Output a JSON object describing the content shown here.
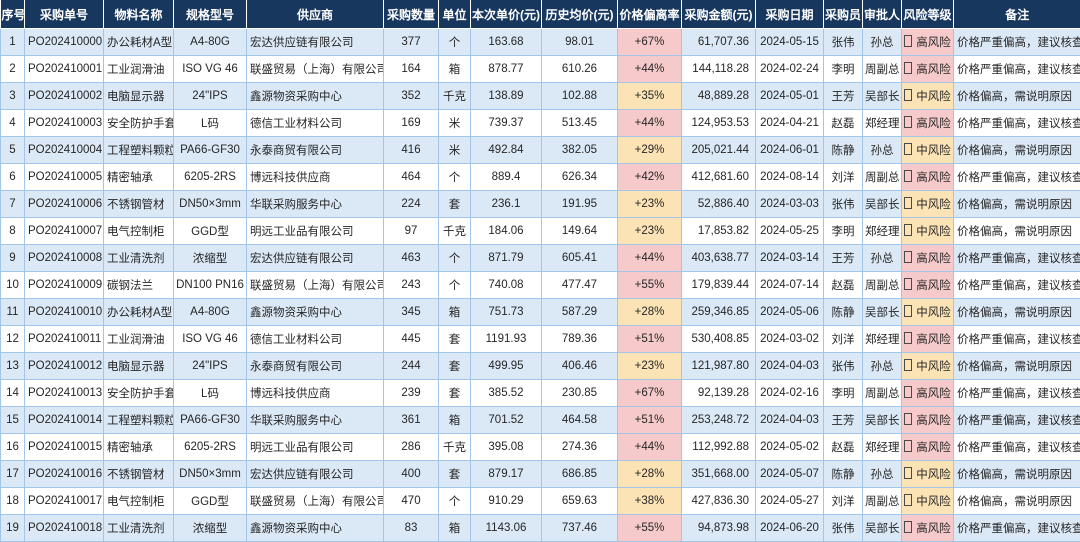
{
  "colors": {
    "header_bg": "#17375e",
    "row_stripe_blue": "#dbe8f6",
    "high_risk_pink": "#f6caca",
    "mid_risk_orange": "#fce3b5",
    "grid_border": "#a3c6e8"
  },
  "table": {
    "columns": [
      {
        "key": "index",
        "label": "序号"
      },
      {
        "key": "po",
        "label": "采购单号"
      },
      {
        "key": "material",
        "label": "物料名称"
      },
      {
        "key": "spec",
        "label": "规格型号"
      },
      {
        "key": "supplier",
        "label": "供应商"
      },
      {
        "key": "qty",
        "label": "采购数量"
      },
      {
        "key": "unit",
        "label": "单位"
      },
      {
        "key": "price",
        "label": "本次单价(元)"
      },
      {
        "key": "avg",
        "label": "历史均价(元)"
      },
      {
        "key": "dev",
        "label": "价格偏离率"
      },
      {
        "key": "amount",
        "label": "采购金额(元)"
      },
      {
        "key": "date",
        "label": "采购日期"
      },
      {
        "key": "buyer",
        "label": "采购员"
      },
      {
        "key": "approver",
        "label": "审批人"
      },
      {
        "key": "risk",
        "label": "风险等级"
      },
      {
        "key": "note",
        "label": "备注"
      }
    ],
    "risk_icon": "tofu-box",
    "rows": [
      {
        "index": "1",
        "po": "PO202410000",
        "material": "办公耗材A型",
        "spec": "A4-80G",
        "supplier": "宏达供应链有限公司",
        "qty": "377",
        "unit": "个",
        "price": "163.68",
        "avg": "98.01",
        "dev": "+67%",
        "dev_level": "high",
        "amount": "61,707.36",
        "date": "2024-05-15",
        "buyer": "张伟",
        "approver": "孙总",
        "risk": "高风险",
        "risk_level": "high",
        "note": "价格严重偏高，建议核查"
      },
      {
        "index": "2",
        "po": "PO202410001",
        "material": "工业润滑油",
        "spec": "ISO VG 46",
        "supplier": "联盛贸易（上海）有限公司",
        "qty": "164",
        "unit": "箱",
        "price": "878.77",
        "avg": "610.26",
        "dev": "+44%",
        "dev_level": "high",
        "amount": "144,118.28",
        "date": "2024-02-24",
        "buyer": "李明",
        "approver": "周副总",
        "risk": "高风险",
        "risk_level": "high",
        "note": "价格严重偏高，建议核查"
      },
      {
        "index": "3",
        "po": "PO202410002",
        "material": "电脑显示器",
        "spec": "24\"IPS",
        "supplier": "鑫源物资采购中心",
        "qty": "352",
        "unit": "千克",
        "price": "138.89",
        "avg": "102.88",
        "dev": "+35%",
        "dev_level": "mid",
        "amount": "48,889.28",
        "date": "2024-05-01",
        "buyer": "王芳",
        "approver": "吴部长",
        "risk": "中风险",
        "risk_level": "mid",
        "note": "价格偏高，需说明原因"
      },
      {
        "index": "4",
        "po": "PO202410003",
        "material": "安全防护手套",
        "spec": "L码",
        "supplier": "德信工业材料公司",
        "qty": "169",
        "unit": "米",
        "price": "739.37",
        "avg": "513.45",
        "dev": "+44%",
        "dev_level": "high",
        "amount": "124,953.53",
        "date": "2024-04-21",
        "buyer": "赵磊",
        "approver": "郑经理",
        "risk": "高风险",
        "risk_level": "high",
        "note": "价格严重偏高，建议核查"
      },
      {
        "index": "5",
        "po": "PO202410004",
        "material": "工程塑料颗粒",
        "spec": "PA66-GF30",
        "supplier": "永泰商贸有限公司",
        "qty": "416",
        "unit": "米",
        "price": "492.84",
        "avg": "382.05",
        "dev": "+29%",
        "dev_level": "mid",
        "amount": "205,021.44",
        "date": "2024-06-01",
        "buyer": "陈静",
        "approver": "孙总",
        "risk": "中风险",
        "risk_level": "mid",
        "note": "价格偏高，需说明原因"
      },
      {
        "index": "6",
        "po": "PO202410005",
        "material": "精密轴承",
        "spec": "6205-2RS",
        "supplier": "博远科技供应商",
        "qty": "464",
        "unit": "个",
        "price": "889.4",
        "avg": "626.34",
        "dev": "+42%",
        "dev_level": "high",
        "amount": "412,681.60",
        "date": "2024-08-14",
        "buyer": "刘洋",
        "approver": "周副总",
        "risk": "高风险",
        "risk_level": "high",
        "note": "价格严重偏高，建议核查"
      },
      {
        "index": "7",
        "po": "PO202410006",
        "material": "不锈钢管材",
        "spec": "DN50×3mm",
        "supplier": "华联采购服务中心",
        "qty": "224",
        "unit": "套",
        "price": "236.1",
        "avg": "191.95",
        "dev": "+23%",
        "dev_level": "mid",
        "amount": "52,886.40",
        "date": "2024-03-03",
        "buyer": "张伟",
        "approver": "吴部长",
        "risk": "中风险",
        "risk_level": "mid",
        "note": "价格偏高，需说明原因"
      },
      {
        "index": "8",
        "po": "PO202410007",
        "material": "电气控制柜",
        "spec": "GGD型",
        "supplier": "明远工业品有限公司",
        "qty": "97",
        "unit": "千克",
        "price": "184.06",
        "avg": "149.64",
        "dev": "+23%",
        "dev_level": "mid",
        "amount": "17,853.82",
        "date": "2024-05-25",
        "buyer": "李明",
        "approver": "郑经理",
        "risk": "中风险",
        "risk_level": "mid",
        "note": "价格偏高，需说明原因"
      },
      {
        "index": "9",
        "po": "PO202410008",
        "material": "工业清洗剂",
        "spec": "浓缩型",
        "supplier": "宏达供应链有限公司",
        "qty": "463",
        "unit": "个",
        "price": "871.79",
        "avg": "605.41",
        "dev": "+44%",
        "dev_level": "high",
        "amount": "403,638.77",
        "date": "2024-03-14",
        "buyer": "王芳",
        "approver": "孙总",
        "risk": "高风险",
        "risk_level": "high",
        "note": "价格严重偏高，建议核查"
      },
      {
        "index": "10",
        "po": "PO202410009",
        "material": "碳钢法兰",
        "spec": "DN100 PN16",
        "supplier": "联盛贸易（上海）有限公司",
        "qty": "243",
        "unit": "个",
        "price": "740.08",
        "avg": "477.47",
        "dev": "+55%",
        "dev_level": "high",
        "amount": "179,839.44",
        "date": "2024-07-14",
        "buyer": "赵磊",
        "approver": "周副总",
        "risk": "高风险",
        "risk_level": "high",
        "note": "价格严重偏高，建议核查"
      },
      {
        "index": "11",
        "po": "PO202410010",
        "material": "办公耗材A型",
        "spec": "A4-80G",
        "supplier": "鑫源物资采购中心",
        "qty": "345",
        "unit": "箱",
        "price": "751.73",
        "avg": "587.29",
        "dev": "+28%",
        "dev_level": "mid",
        "amount": "259,346.85",
        "date": "2024-05-06",
        "buyer": "陈静",
        "approver": "吴部长",
        "risk": "中风险",
        "risk_level": "mid",
        "note": "价格偏高，需说明原因"
      },
      {
        "index": "12",
        "po": "PO202410011",
        "material": "工业润滑油",
        "spec": "ISO VG 46",
        "supplier": "德信工业材料公司",
        "qty": "445",
        "unit": "套",
        "price": "1191.93",
        "avg": "789.36",
        "dev": "+51%",
        "dev_level": "high",
        "amount": "530,408.85",
        "date": "2024-03-02",
        "buyer": "刘洋",
        "approver": "郑经理",
        "risk": "高风险",
        "risk_level": "high",
        "note": "价格严重偏高，建议核查"
      },
      {
        "index": "13",
        "po": "PO202410012",
        "material": "电脑显示器",
        "spec": "24\"IPS",
        "supplier": "永泰商贸有限公司",
        "qty": "244",
        "unit": "套",
        "price": "499.95",
        "avg": "406.46",
        "dev": "+23%",
        "dev_level": "mid",
        "amount": "121,987.80",
        "date": "2024-04-03",
        "buyer": "张伟",
        "approver": "孙总",
        "risk": "中风险",
        "risk_level": "mid",
        "note": "价格偏高，需说明原因"
      },
      {
        "index": "14",
        "po": "PO202410013",
        "material": "安全防护手套",
        "spec": "L码",
        "supplier": "博远科技供应商",
        "qty": "239",
        "unit": "套",
        "price": "385.52",
        "avg": "230.85",
        "dev": "+67%",
        "dev_level": "high",
        "amount": "92,139.28",
        "date": "2024-02-16",
        "buyer": "李明",
        "approver": "周副总",
        "risk": "高风险",
        "risk_level": "high",
        "note": "价格严重偏高，建议核查"
      },
      {
        "index": "15",
        "po": "PO202410014",
        "material": "工程塑料颗粒",
        "spec": "PA66-GF30",
        "supplier": "华联采购服务中心",
        "qty": "361",
        "unit": "箱",
        "price": "701.52",
        "avg": "464.58",
        "dev": "+51%",
        "dev_level": "high",
        "amount": "253,248.72",
        "date": "2024-04-03",
        "buyer": "王芳",
        "approver": "吴部长",
        "risk": "高风险",
        "risk_level": "high",
        "note": "价格严重偏高，建议核查"
      },
      {
        "index": "16",
        "po": "PO202410015",
        "material": "精密轴承",
        "spec": "6205-2RS",
        "supplier": "明远工业品有限公司",
        "qty": "286",
        "unit": "千克",
        "price": "395.08",
        "avg": "274.36",
        "dev": "+44%",
        "dev_level": "high",
        "amount": "112,992.88",
        "date": "2024-05-02",
        "buyer": "赵磊",
        "approver": "郑经理",
        "risk": "高风险",
        "risk_level": "high",
        "note": "价格严重偏高，建议核查"
      },
      {
        "index": "17",
        "po": "PO202410016",
        "material": "不锈钢管材",
        "spec": "DN50×3mm",
        "supplier": "宏达供应链有限公司",
        "qty": "400",
        "unit": "套",
        "price": "879.17",
        "avg": "686.85",
        "dev": "+28%",
        "dev_level": "mid",
        "amount": "351,668.00",
        "date": "2024-05-07",
        "buyer": "陈静",
        "approver": "孙总",
        "risk": "中风险",
        "risk_level": "mid",
        "note": "价格偏高，需说明原因"
      },
      {
        "index": "18",
        "po": "PO202410017",
        "material": "电气控制柜",
        "spec": "GGD型",
        "supplier": "联盛贸易（上海）有限公司",
        "qty": "470",
        "unit": "个",
        "price": "910.29",
        "avg": "659.63",
        "dev": "+38%",
        "dev_level": "mid",
        "amount": "427,836.30",
        "date": "2024-05-27",
        "buyer": "刘洋",
        "approver": "周副总",
        "risk": "中风险",
        "risk_level": "mid",
        "note": "价格偏高，需说明原因"
      },
      {
        "index": "19",
        "po": "PO202410018",
        "material": "工业清洗剂",
        "spec": "浓缩型",
        "supplier": "鑫源物资采购中心",
        "qty": "83",
        "unit": "箱",
        "price": "1143.06",
        "avg": "737.46",
        "dev": "+55%",
        "dev_level": "high",
        "amount": "94,873.98",
        "date": "2024-06-20",
        "buyer": "张伟",
        "approver": "吴部长",
        "risk": "高风险",
        "risk_level": "high",
        "note": "价格严重偏高，建议核查"
      }
    ]
  }
}
